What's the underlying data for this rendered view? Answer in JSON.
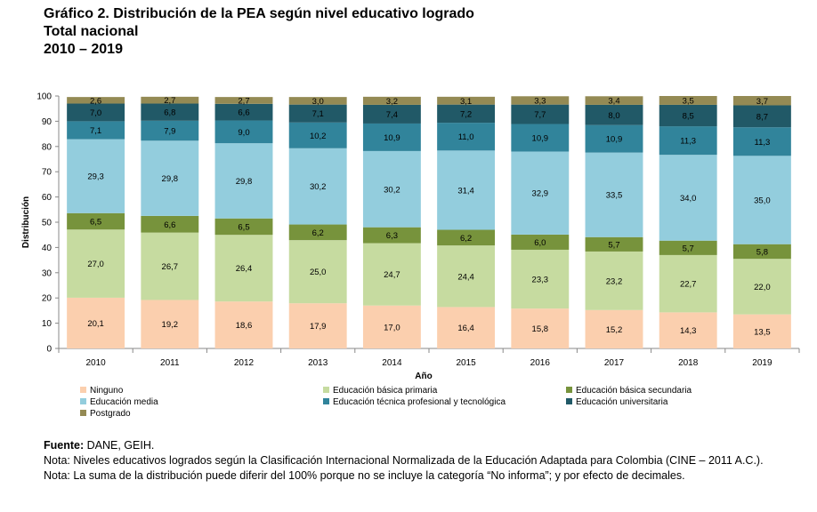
{
  "title": {
    "line1": "Gráfico 2. Distribución de la PEA según nivel educativo logrado",
    "line2": "Total nacional",
    "line3": "2010 – 2019"
  },
  "chart_data": {
    "type": "bar",
    "stacked": true,
    "xlabel": "Año",
    "ylabel": "Distribución",
    "ylim": [
      0,
      100
    ],
    "yticks": [
      0,
      10,
      20,
      30,
      40,
      50,
      60,
      70,
      80,
      90,
      100
    ],
    "categories": [
      "2010",
      "2011",
      "2012",
      "2013",
      "2014",
      "2015",
      "2016",
      "2017",
      "2018",
      "2019"
    ],
    "legend_position": "bottom",
    "series": [
      {
        "name": "Ninguno",
        "color": "#fbcfae",
        "values": [
          20.1,
          19.2,
          18.6,
          17.9,
          17.0,
          16.4,
          15.8,
          15.2,
          14.3,
          13.5
        ]
      },
      {
        "name": "Educación básica primaria",
        "color": "#c6dba0",
        "values": [
          27.0,
          26.7,
          26.4,
          25.0,
          24.7,
          24.4,
          23.3,
          23.2,
          22.7,
          22.0
        ]
      },
      {
        "name": "Educación básica secundaria",
        "color": "#77933c",
        "values": [
          6.5,
          6.6,
          6.5,
          6.2,
          6.3,
          6.2,
          6.0,
          5.7,
          5.7,
          5.8
        ]
      },
      {
        "name": "Educación media",
        "color": "#93cddd",
        "values": [
          29.3,
          29.8,
          29.8,
          30.2,
          30.2,
          31.4,
          32.9,
          33.5,
          34.0,
          35.0
        ]
      },
      {
        "name": "Educación técnica profesional y tecnológica",
        "color": "#31849b",
        "values": [
          7.1,
          7.9,
          9.0,
          10.2,
          10.9,
          11.0,
          10.9,
          10.9,
          11.3,
          11.3
        ]
      },
      {
        "name": "Educación universitaria",
        "color": "#215967",
        "values": [
          7.0,
          6.8,
          6.6,
          7.1,
          7.4,
          7.2,
          7.7,
          8.0,
          8.5,
          8.7
        ]
      },
      {
        "name": "Postgrado",
        "color": "#948a54",
        "values": [
          2.6,
          2.7,
          2.7,
          3.0,
          3.2,
          3.1,
          3.3,
          3.4,
          3.5,
          3.7
        ]
      }
    ]
  },
  "footer": {
    "source_label": "Fuente:",
    "source_text": "DANE, GEIH.",
    "note1": "Nota: Niveles educativos logrados según la Clasificación Internacional Normalizada de la Educación Adaptada para Colombia (CINE – 2011 A.C.).",
    "note2": "Nota: La suma de la distribución puede diferir del 100% porque no se incluye la categoría “No informa”; y por efecto de decimales."
  }
}
